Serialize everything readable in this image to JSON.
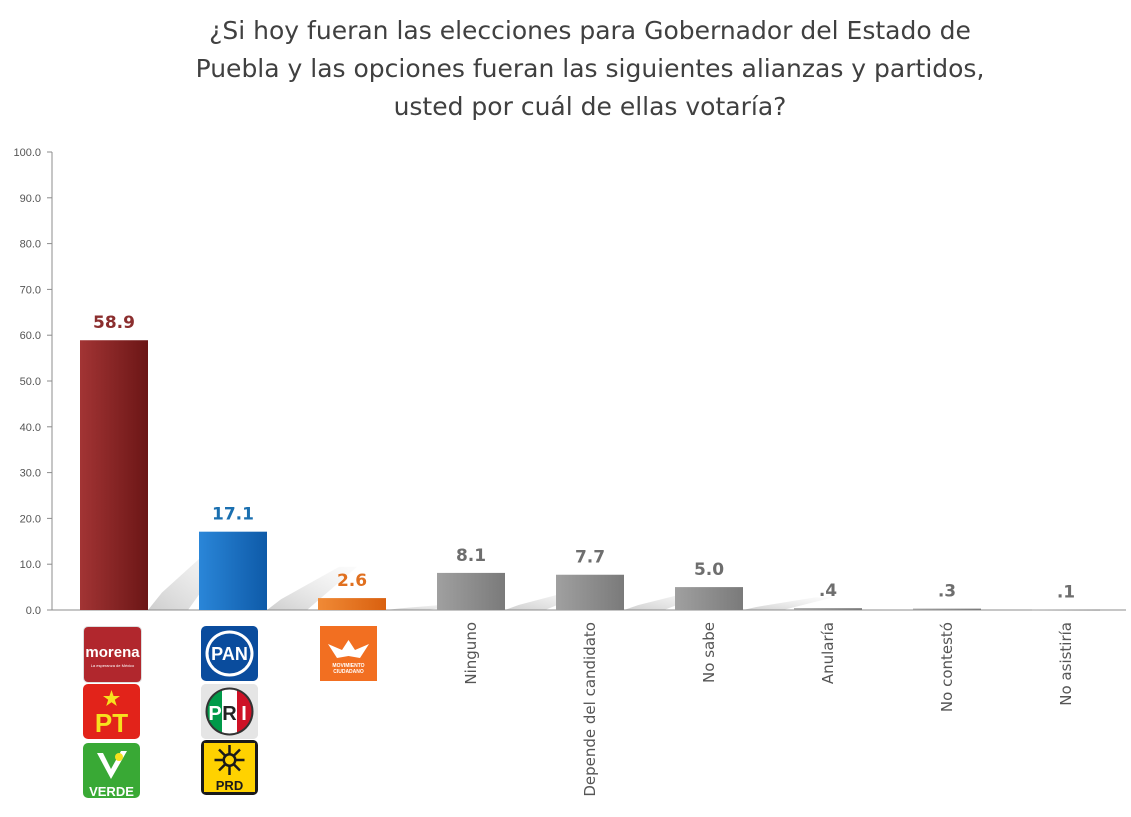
{
  "chart_data": {
    "type": "bar",
    "title": "¿Si hoy fueran las elecciones para Gobernador del Estado de Puebla y las opciones fueran las siguientes alianzas y partidos, usted por cuál de ellas votaría?",
    "title_lines": [
      "¿Si hoy fueran las elecciones para Gobernador del Estado de",
      "Puebla y las opciones fueran las siguientes alianzas y partidos,",
      "usted por cuál de ellas votaría?"
    ],
    "categories": [
      "Morena-PT-Verde",
      "PAN-PRI-PRD",
      "Movimiento Ciudadano",
      "Ninguno",
      "Depende del candidato",
      "No sabe",
      "Anularía",
      "No contestó",
      "No asistiría"
    ],
    "values": [
      58.9,
      17.1,
      2.6,
      8.1,
      7.7,
      5.0,
      0.4,
      0.3,
      0.1
    ],
    "value_labels": [
      "58.9",
      "17.1",
      "2.6",
      "8.1",
      "7.7",
      "5.0",
      ".4",
      ".3",
      ".1"
    ],
    "bar_colors": [
      "#8b2525",
      "#1a6fc4",
      "#e8731e",
      "#8a8a8a",
      "#8a8a8a",
      "#8a8a8a",
      "#8a8a8a",
      "#8a8a8a",
      "#8a8a8a"
    ],
    "label_colors": [
      "#8b2e2e",
      "#1a6fb0",
      "#e07020",
      "#6e6e6e",
      "#6e6e6e",
      "#6e6e6e",
      "#6e6e6e",
      "#6e6e6e",
      "#6e6e6e"
    ],
    "y_ticks": [
      "0.0",
      "10.0",
      "20.0",
      "30.0",
      "40.0",
      "50.0",
      "60.0",
      "70.0",
      "80.0",
      "90.0",
      "100.0"
    ],
    "ylim": [
      0,
      100
    ],
    "xlabel": "",
    "ylabel": "",
    "grid": false,
    "legend": "none"
  },
  "logos": {
    "morena": {
      "name": "morena",
      "tagline": "La esperanza de México",
      "color": "#b1272d"
    },
    "pt": {
      "name": "PT",
      "color": "#e2231a",
      "star_color": "#f7e11e"
    },
    "verde": {
      "name": "VERDE",
      "color": "#39a935"
    },
    "pan": {
      "name": "PAN",
      "color": "#0a4c9d"
    },
    "pri": {
      "letters": [
        "P",
        "R",
        "I"
      ],
      "colors": [
        "#009a49",
        "#ffffff",
        "#ce1126"
      ]
    },
    "prd": {
      "name": "PRD",
      "color": "#ffd200"
    },
    "mc": {
      "name_top": "MOVIMIENTO",
      "name_bottom": "CIUDADANO",
      "color": "#f26f21"
    }
  }
}
